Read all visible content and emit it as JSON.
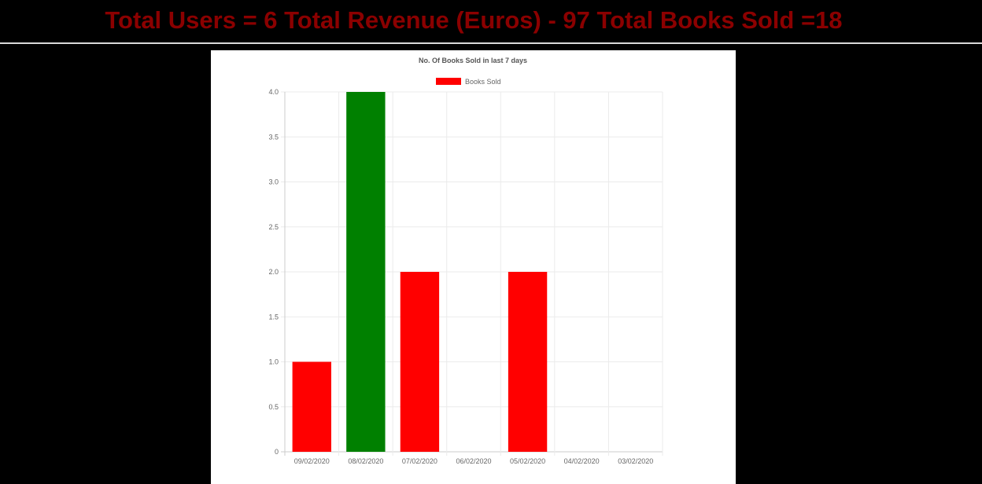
{
  "header": {
    "title": "Total Users = 6 Total Revenue (Euros) - 97 Total Books Sold =18",
    "title_color": "#8b0000"
  },
  "chart_data": {
    "type": "bar",
    "title": "No. Of Books Sold in last 7 days",
    "categories": [
      "09/02/2020",
      "08/02/2020",
      "07/02/2020",
      "06/02/2020",
      "05/02/2020",
      "04/02/2020",
      "03/02/2020"
    ],
    "series": [
      {
        "name": "Books Sold",
        "values": [
          1,
          4,
          2,
          0,
          2,
          0,
          0
        ],
        "color": "#ff0000"
      }
    ],
    "bar_colors": [
      "#ff0000",
      "#008000",
      "#ff0000",
      "#ff0000",
      "#ff0000",
      "#ff0000",
      "#ff0000"
    ],
    "ylim": [
      0,
      4
    ],
    "yticks": [
      "0",
      "0.5",
      "1.0",
      "1.5",
      "2.0",
      "2.5",
      "3.0",
      "3.5",
      "4.0"
    ],
    "ytick_values": [
      0,
      0.5,
      1,
      1.5,
      2,
      2.5,
      3,
      3.5,
      4
    ],
    "grid": true,
    "legend_position": "top",
    "xlabel": "",
    "ylabel": ""
  }
}
